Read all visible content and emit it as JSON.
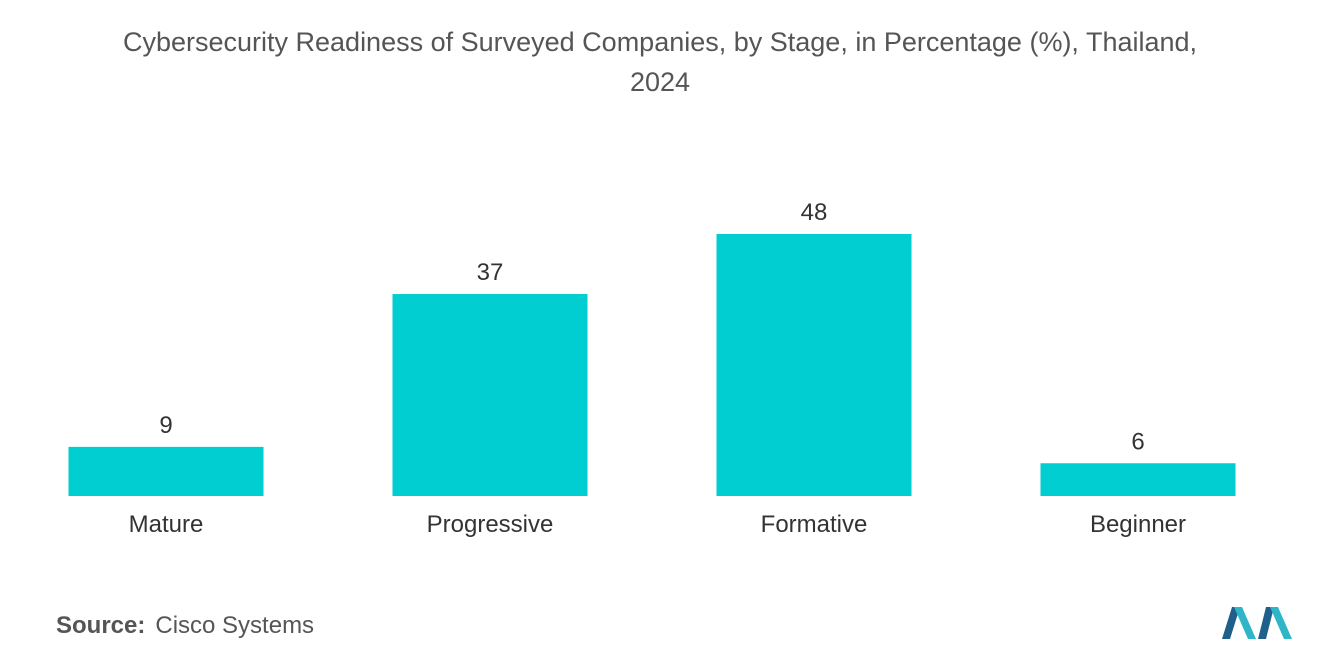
{
  "title": {
    "line1": "Cybersecurity Readiness of Surveyed Companies, by Stage, in Percentage (%), Thailand,",
    "line2": "2024"
  },
  "source": {
    "label": "Source:",
    "value": "Cisco Systems"
  },
  "colors": {
    "bar": "#00CED1",
    "logo_dark": "#1F5F8B",
    "logo_light": "#2FB5C8"
  },
  "logo": {
    "icon": "mordor-intelligence-logo"
  },
  "chart_data": {
    "type": "bar",
    "title": "Cybersecurity Readiness of Surveyed Companies, by Stage, in Percentage (%), Thailand, 2024",
    "categories": [
      "Mature",
      "Progressive",
      "Formative",
      "Beginner"
    ],
    "values": [
      9,
      37,
      48,
      6
    ],
    "xlabel": "",
    "ylabel": "",
    "ylim": [
      0,
      48
    ],
    "grid": false,
    "legend": "none",
    "data_labels": true
  }
}
